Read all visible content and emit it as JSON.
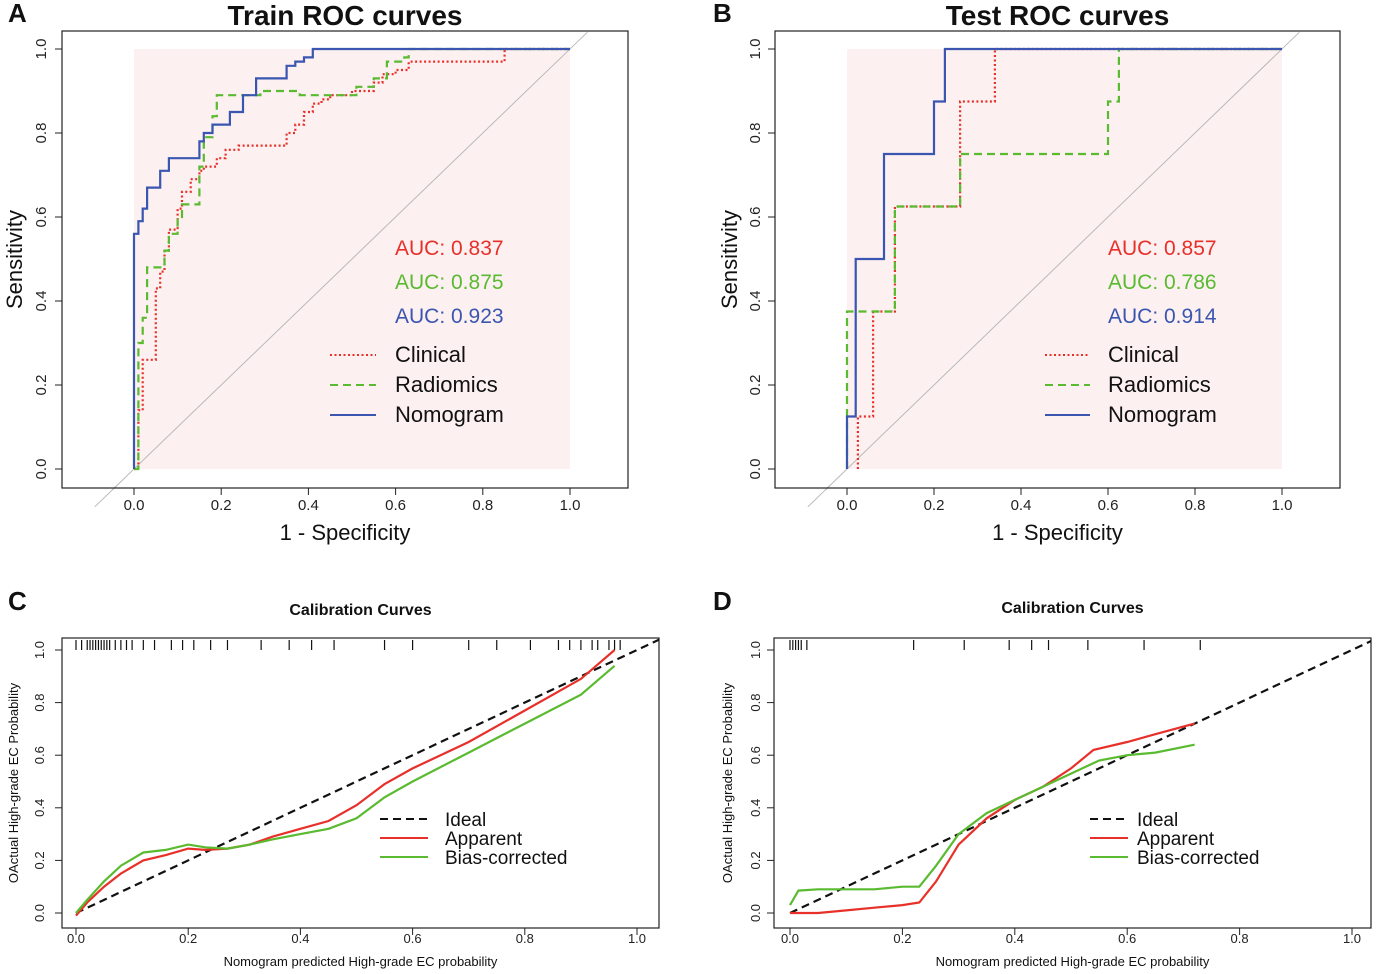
{
  "chart_data": [
    {
      "type": "line",
      "panel": "A",
      "title": "Train ROC curves",
      "xlabel": "1 - Specificity",
      "ylabel": "Sensitivity",
      "xlim": [
        -0.15,
        1.15
      ],
      "ylim": [
        0,
        1
      ],
      "xticks": [
        "0.0",
        "0.2",
        "0.4",
        "0.6",
        "0.8",
        "1.0"
      ],
      "yticks": [
        "0.0",
        "0.2",
        "0.4",
        "0.6",
        "0.8",
        "1.0"
      ],
      "reference_line": "diagonal",
      "series": [
        {
          "name": "Clinical",
          "color": "#e8302a",
          "style": "dotted",
          "auc_label": "AUC: 0.837",
          "x": [
            0,
            0.01,
            0.01,
            0.02,
            0.02,
            0.05,
            0.05,
            0.06,
            0.06,
            0.07,
            0.07,
            0.08,
            0.08,
            0.1,
            0.1,
            0.11,
            0.11,
            0.13,
            0.13,
            0.15,
            0.15,
            0.16,
            0.16,
            0.19,
            0.19,
            0.21,
            0.21,
            0.24,
            0.24,
            0.35,
            0.35,
            0.37,
            0.37,
            0.39,
            0.39,
            0.41,
            0.41,
            0.43,
            0.43,
            0.45,
            0.45,
            0.5,
            0.5,
            0.55,
            0.55,
            0.57,
            0.57,
            0.6,
            0.6,
            0.63,
            0.63,
            0.85,
            0.85,
            1.0
          ],
          "y": [
            0,
            0,
            0.14,
            0.14,
            0.26,
            0.26,
            0.43,
            0.43,
            0.47,
            0.47,
            0.52,
            0.52,
            0.57,
            0.57,
            0.62,
            0.62,
            0.66,
            0.66,
            0.69,
            0.69,
            0.71,
            0.71,
            0.72,
            0.72,
            0.74,
            0.74,
            0.76,
            0.76,
            0.77,
            0.77,
            0.8,
            0.8,
            0.82,
            0.82,
            0.85,
            0.85,
            0.87,
            0.87,
            0.88,
            0.88,
            0.89,
            0.89,
            0.9,
            0.9,
            0.92,
            0.92,
            0.94,
            0.94,
            0.95,
            0.95,
            0.97,
            0.97,
            1.0,
            1.0
          ]
        },
        {
          "name": "Radiomics",
          "color": "#5aba30",
          "style": "dashed",
          "auc_label": "AUC: 0.875",
          "x": [
            0,
            0.01,
            0.01,
            0.02,
            0.02,
            0.03,
            0.03,
            0.07,
            0.07,
            0.08,
            0.08,
            0.1,
            0.1,
            0.11,
            0.11,
            0.15,
            0.15,
            0.16,
            0.16,
            0.18,
            0.18,
            0.19,
            0.19,
            0.29,
            0.29,
            0.38,
            0.38,
            0.51,
            0.51,
            0.55,
            0.55,
            0.58,
            0.58,
            0.62,
            0.62,
            0.63,
            0.63,
            1.0
          ],
          "y": [
            0,
            0,
            0.3,
            0.3,
            0.36,
            0.36,
            0.48,
            0.48,
            0.52,
            0.52,
            0.56,
            0.56,
            0.6,
            0.6,
            0.63,
            0.63,
            0.72,
            0.72,
            0.79,
            0.79,
            0.84,
            0.84,
            0.89,
            0.89,
            0.9,
            0.9,
            0.89,
            0.89,
            0.91,
            0.91,
            0.93,
            0.93,
            0.97,
            0.97,
            0.98,
            0.98,
            1.0,
            1.0
          ]
        },
        {
          "name": "Nomogram",
          "color": "#3a56b0",
          "style": "solid",
          "auc_label": "AUC: 0.923",
          "x": [
            0,
            0,
            0.01,
            0.01,
            0.02,
            0.02,
            0.03,
            0.03,
            0.06,
            0.06,
            0.08,
            0.08,
            0.15,
            0.15,
            0.16,
            0.16,
            0.18,
            0.18,
            0.22,
            0.22,
            0.25,
            0.25,
            0.28,
            0.28,
            0.35,
            0.35,
            0.37,
            0.37,
            0.39,
            0.39,
            0.41,
            0.41,
            1.0
          ],
          "y": [
            0,
            0.56,
            0.56,
            0.59,
            0.59,
            0.62,
            0.62,
            0.67,
            0.67,
            0.71,
            0.71,
            0.74,
            0.74,
            0.78,
            0.78,
            0.8,
            0.8,
            0.82,
            0.82,
            0.85,
            0.85,
            0.89,
            0.89,
            0.93,
            0.93,
            0.96,
            0.96,
            0.97,
            0.97,
            0.98,
            0.98,
            1.0,
            1.0
          ]
        }
      ],
      "legend": [
        "Clinical",
        "Radiomics",
        "Nomogram"
      ]
    },
    {
      "type": "line",
      "panel": "B",
      "title": "Test ROC curves",
      "xlabel": "1 - Specificity",
      "ylabel": "Sensitivity",
      "xlim": [
        -0.15,
        1.15
      ],
      "ylim": [
        0,
        1
      ],
      "xticks": [
        "0.0",
        "0.2",
        "0.4",
        "0.6",
        "0.8",
        "1.0"
      ],
      "yticks": [
        "0.0",
        "0.2",
        "0.4",
        "0.6",
        "0.8",
        "1.0"
      ],
      "reference_line": "diagonal",
      "series": [
        {
          "name": "Clinical",
          "color": "#e8302a",
          "style": "dotted",
          "auc_label": "AUC: 0.857",
          "x": [
            0.025,
            0.025,
            0.06,
            0.06,
            0.11,
            0.11,
            0.26,
            0.26,
            0.34,
            0.34,
            1.0
          ],
          "y": [
            0,
            0.125,
            0.125,
            0.375,
            0.375,
            0.625,
            0.625,
            0.875,
            0.875,
            1.0,
            1.0
          ]
        },
        {
          "name": "Radiomics",
          "color": "#5aba30",
          "style": "dashed",
          "auc_label": "AUC: 0.786",
          "x": [
            0,
            0,
            0.11,
            0.11,
            0.26,
            0.26,
            0.6,
            0.6,
            0.625,
            0.625,
            1.0
          ],
          "y": [
            0,
            0.375,
            0.375,
            0.625,
            0.625,
            0.75,
            0.75,
            0.875,
            0.875,
            1.0,
            1.0
          ]
        },
        {
          "name": "Nomogram",
          "color": "#3a56b0",
          "style": "solid",
          "auc_label": "AUC: 0.914",
          "x": [
            0,
            0,
            0.02,
            0.02,
            0.085,
            0.085,
            0.2,
            0.2,
            0.225,
            0.225,
            1.0
          ],
          "y": [
            0,
            0.125,
            0.125,
            0.5,
            0.5,
            0.75,
            0.75,
            0.875,
            0.875,
            1.0,
            1.0
          ]
        }
      ],
      "legend": [
        "Clinical",
        "Radiomics",
        "Nomogram"
      ]
    },
    {
      "type": "line",
      "panel": "C",
      "title": "Calibration Curves",
      "xlabel": "Nomogram predicted High-grade EC probability",
      "ylabel": "OActual High-grade EC Probability",
      "xlim": [
        -0.03,
        1.05
      ],
      "ylim": [
        -0.03,
        1.05
      ],
      "xticks": [
        "0.0",
        "0.2",
        "0.4",
        "0.6",
        "0.8",
        "1.0"
      ],
      "yticks": [
        "0.0",
        "0.2",
        "0.4",
        "0.6",
        "0.8",
        "1.0"
      ],
      "rug": [
        0.0,
        0.01,
        0.02,
        0.025,
        0.03,
        0.035,
        0.04,
        0.045,
        0.05,
        0.055,
        0.06,
        0.07,
        0.08,
        0.09,
        0.1,
        0.12,
        0.14,
        0.17,
        0.19,
        0.21,
        0.24,
        0.27,
        0.33,
        0.38,
        0.42,
        0.46,
        0.55,
        0.6,
        0.7,
        0.75,
        0.81,
        0.86,
        0.88,
        0.9,
        0.92,
        0.93,
        0.95,
        0.96,
        0.97
      ],
      "series": [
        {
          "name": "Ideal",
          "color": "#111111",
          "style": "dashed",
          "x": [
            0,
            1.05
          ],
          "y": [
            0,
            1.05
          ]
        },
        {
          "name": "Apparent",
          "color": "#e8302a",
          "style": "solid",
          "x": [
            0.0,
            0.02,
            0.05,
            0.08,
            0.12,
            0.16,
            0.2,
            0.23,
            0.27,
            0.31,
            0.35,
            0.4,
            0.45,
            0.5,
            0.55,
            0.6,
            0.7,
            0.8,
            0.9,
            0.96
          ],
          "y": [
            -0.01,
            0.04,
            0.1,
            0.15,
            0.2,
            0.22,
            0.245,
            0.24,
            0.245,
            0.26,
            0.29,
            0.32,
            0.35,
            0.41,
            0.49,
            0.55,
            0.65,
            0.77,
            0.89,
            1.0
          ]
        },
        {
          "name": "Bias-corrected",
          "color": "#5aba30",
          "style": "solid",
          "x": [
            0.0,
            0.02,
            0.05,
            0.08,
            0.12,
            0.16,
            0.2,
            0.23,
            0.27,
            0.31,
            0.35,
            0.4,
            0.45,
            0.5,
            0.55,
            0.6,
            0.7,
            0.8,
            0.9,
            0.96
          ],
          "y": [
            0.0,
            0.05,
            0.12,
            0.18,
            0.23,
            0.24,
            0.26,
            0.25,
            0.245,
            0.26,
            0.28,
            0.3,
            0.32,
            0.36,
            0.44,
            0.5,
            0.61,
            0.72,
            0.83,
            0.94
          ]
        }
      ],
      "legend": [
        "Ideal",
        "Apparent",
        "Bias-corrected"
      ]
    },
    {
      "type": "line",
      "panel": "D",
      "title": "Calibration Curves",
      "xlabel": "Nomogram predicted High-grade EC probability",
      "ylabel": "OActual High-grade EC Probability",
      "xlim": [
        -0.03,
        1.05
      ],
      "ylim": [
        -0.03,
        1.05
      ],
      "xticks": [
        "0.0",
        "0.2",
        "0.4",
        "0.6",
        "0.8",
        "1.0"
      ],
      "yticks": [
        "0.0",
        "0.2",
        "0.4",
        "0.6",
        "0.8",
        "1.0"
      ],
      "rug": [
        0.0,
        0.005,
        0.01,
        0.015,
        0.02,
        0.03,
        0.22,
        0.31,
        0.39,
        0.43,
        0.46,
        0.53,
        0.63,
        0.73
      ],
      "series": [
        {
          "name": "Ideal",
          "color": "#111111",
          "style": "dashed",
          "x": [
            0,
            1.05
          ],
          "y": [
            0,
            1.05
          ]
        },
        {
          "name": "Apparent",
          "color": "#e8302a",
          "style": "solid",
          "x": [
            0.0,
            0.05,
            0.1,
            0.15,
            0.2,
            0.23,
            0.26,
            0.3,
            0.35,
            0.4,
            0.45,
            0.5,
            0.54,
            0.6,
            0.65,
            0.72
          ],
          "y": [
            0.0,
            0.0,
            0.01,
            0.02,
            0.03,
            0.04,
            0.12,
            0.26,
            0.36,
            0.43,
            0.48,
            0.55,
            0.62,
            0.65,
            0.68,
            0.72
          ]
        },
        {
          "name": "Bias-corrected",
          "color": "#5aba30",
          "style": "solid",
          "x": [
            0.0,
            0.015,
            0.05,
            0.1,
            0.15,
            0.2,
            0.23,
            0.26,
            0.3,
            0.35,
            0.4,
            0.45,
            0.5,
            0.55,
            0.6,
            0.65,
            0.72
          ],
          "y": [
            0.03,
            0.085,
            0.09,
            0.09,
            0.09,
            0.1,
            0.1,
            0.18,
            0.3,
            0.38,
            0.43,
            0.48,
            0.53,
            0.58,
            0.6,
            0.61,
            0.64
          ]
        }
      ],
      "legend": [
        "Ideal",
        "Apparent",
        "Bias-corrected"
      ]
    }
  ]
}
